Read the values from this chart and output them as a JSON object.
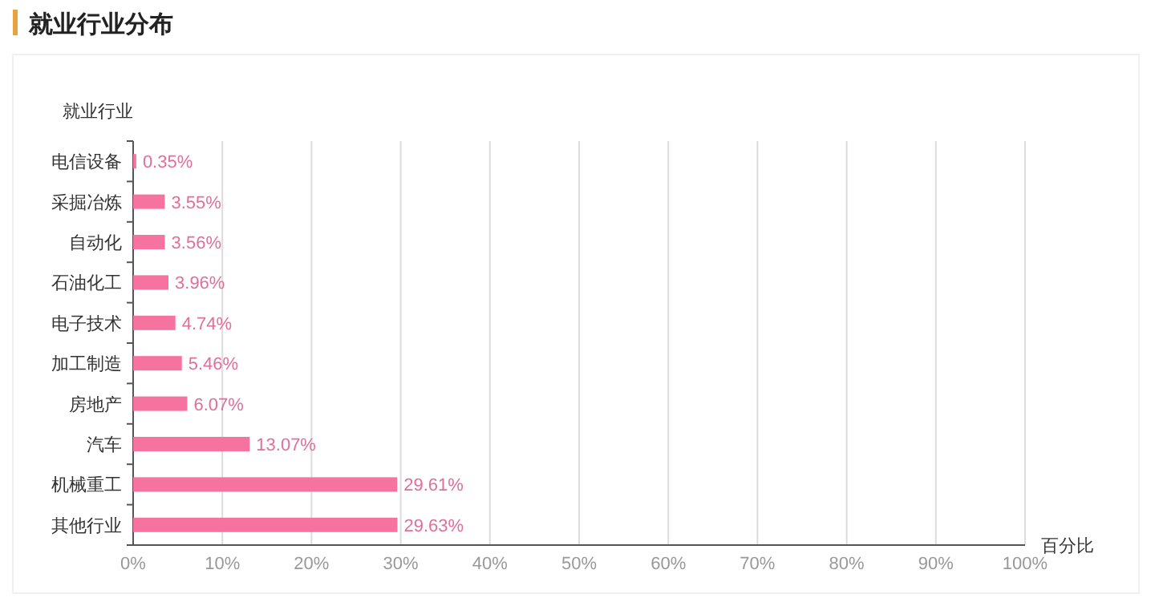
{
  "chart_data": {
    "type": "bar",
    "orientation": "horizontal",
    "title": "就业行业分布",
    "ylabel": "就业行业",
    "xlabel": "百分比",
    "categories": [
      "电信设备",
      "采掘冶炼",
      "自动化",
      "石油化工",
      "电子技术",
      "加工制造",
      "房地产",
      "汽车",
      "机械重工",
      "其他行业"
    ],
    "values": [
      0.35,
      3.55,
      3.56,
      3.96,
      4.74,
      5.46,
      6.07,
      13.07,
      29.61,
      29.63
    ],
    "value_labels": [
      "0.35%",
      "3.55%",
      "3.56%",
      "3.96%",
      "4.74%",
      "5.46%",
      "6.07%",
      "13.07%",
      "29.61%",
      "29.63%"
    ],
    "color": "#f7739f",
    "xlim": [
      0,
      100
    ],
    "xticks": [
      {
        "value": 0,
        "label": "0%"
      },
      {
        "value": 10,
        "label": "10%"
      },
      {
        "value": 20,
        "label": "20%"
      },
      {
        "value": 30,
        "label": "30%"
      },
      {
        "value": 40,
        "label": "40%"
      },
      {
        "value": 50,
        "label": "50%"
      },
      {
        "value": 60,
        "label": "60%"
      },
      {
        "value": 70,
        "label": "70%"
      },
      {
        "value": 80,
        "label": "80%"
      },
      {
        "value": 90,
        "label": "90%"
      },
      {
        "value": 100,
        "label": "100%"
      }
    ],
    "grid": "x"
  }
}
